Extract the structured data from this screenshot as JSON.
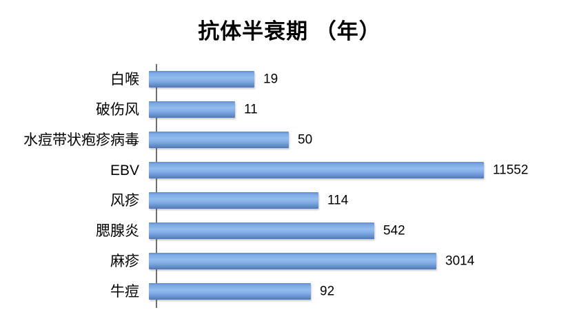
{
  "chart_data": {
    "type": "bar",
    "orientation": "horizontal",
    "title": "抗体半衰期 （年）",
    "categories": [
      "白喉",
      "破伤风",
      "水痘带状疱疹病毒",
      "EBV",
      "风疹",
      "腮腺炎",
      "麻疹",
      "牛痘"
    ],
    "values": [
      19,
      11,
      50,
      11552,
      114,
      542,
      3014,
      92
    ],
    "data_labels": [
      19,
      11,
      50,
      11552,
      114,
      542,
      3014,
      92
    ],
    "xlabel": "",
    "ylabel": "",
    "value_axis": {
      "scale": "log",
      "min": 1,
      "max": 20000,
      "ticks_visible": false
    },
    "grid": "off",
    "legend": "none",
    "colors": {
      "bar_fill_light": "#93bcf0",
      "bar_fill_dark": "#4f77b3",
      "axis_line": "#6e6e6e",
      "text": "#000000",
      "background": "#ffffff"
    }
  }
}
